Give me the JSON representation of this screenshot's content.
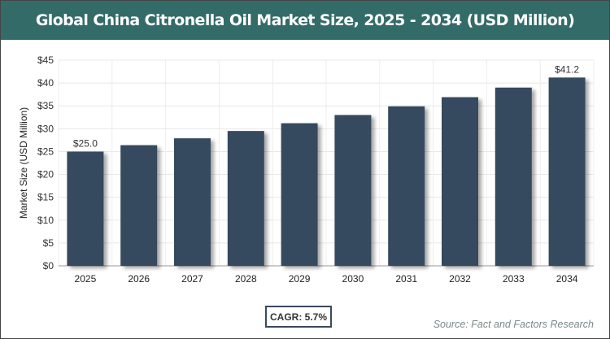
{
  "title": "Global China Citronella Oil Market Size, 2025 - 2034 (USD Million)",
  "cagr_label": "CAGR: 5.7%",
  "source": "Source: Fact and Factors Research",
  "colors": {
    "header": "#336b69",
    "bar": "#34495e"
  },
  "chart_data": {
    "type": "bar",
    "title": "Global China Citronella Oil Market Size, 2025 - 2034 (USD Million)",
    "xlabel": "",
    "ylabel": "Market Size (USD Million)",
    "categories": [
      "2025",
      "2026",
      "2027",
      "2028",
      "2029",
      "2030",
      "2031",
      "2032",
      "2033",
      "2034"
    ],
    "values": [
      25.0,
      26.4,
      27.9,
      29.5,
      31.2,
      33.0,
      34.9,
      36.9,
      39.0,
      41.2
    ],
    "data_labels": {
      "0": "$25.0",
      "9": "$41.2"
    },
    "ylim": [
      0,
      45
    ],
    "yticks": [
      "$0",
      "$5",
      "$10",
      "$15",
      "$20",
      "$25",
      "$30",
      "$35",
      "$40",
      "$45"
    ],
    "grid": true,
    "legend": "none"
  }
}
